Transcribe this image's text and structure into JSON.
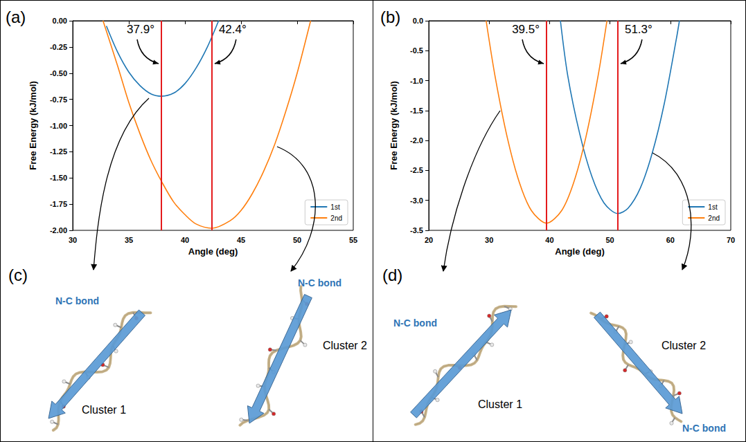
{
  "chart_data": [
    {
      "type": "line",
      "panel": "(a)",
      "xlabel": "Angle (deg)",
      "ylabel": "Free Energy (kJ/mol)",
      "xlim": [
        30,
        55
      ],
      "xticks": [
        30,
        35,
        40,
        45,
        50,
        55
      ],
      "ylim": [
        -2,
        0
      ],
      "yticks": [
        {
          "value": -2,
          "label": "-2.00"
        },
        -1.75,
        {
          "value": -1.5,
          "label": "-1.50"
        },
        -1.25,
        {
          "value": -1,
          "label": "-1.00"
        },
        -0.75,
        {
          "value": -0.5,
          "label": "-0.50"
        },
        -0.25,
        {
          "value": 0,
          "label": "0.00"
        }
      ],
      "grid": false,
      "legend": "lower right",
      "series": [
        {
          "name": "1st",
          "color": "#1f77b4",
          "x": [
            33,
            34,
            35,
            36,
            37,
            37.9,
            39,
            40,
            41,
            42,
            43
          ],
          "values": [
            -0.05,
            -0.3,
            -0.49,
            -0.62,
            -0.7,
            -0.72,
            -0.69,
            -0.6,
            -0.45,
            -0.25,
            0.0
          ]
        },
        {
          "name": "2nd",
          "color": "#ff7f0e",
          "x": [
            32.7,
            34,
            35,
            36,
            37,
            38,
            39,
            40,
            41,
            42.4,
            44,
            45,
            46,
            47,
            48,
            49,
            50,
            51.2
          ],
          "values": [
            0.0,
            -0.43,
            -0.78,
            -1.08,
            -1.34,
            -1.55,
            -1.73,
            -1.85,
            -1.94,
            -1.98,
            -1.91,
            -1.81,
            -1.65,
            -1.44,
            -1.18,
            -0.86,
            -0.5,
            0.0
          ]
        }
      ],
      "vlines": [
        {
          "x": 37.9,
          "label": "37.9°",
          "color": "#e41a1c"
        },
        {
          "x": 42.4,
          "label": "42.4°",
          "color": "#e41a1c"
        }
      ]
    },
    {
      "type": "line",
      "panel": "(b)",
      "xlabel": "Angle (deg)",
      "ylabel": "Free Energy (kJ/mol)",
      "xlim": [
        20,
        70
      ],
      "xticks": [
        20,
        30,
        40,
        50,
        60,
        70
      ],
      "ylim": [
        -3.5,
        0
      ],
      "yticks": [
        -3.5,
        {
          "value": -3,
          "label": "-3.0"
        },
        -2.5,
        {
          "value": -2,
          "label": "-2.0"
        },
        -1.5,
        {
          "value": -1,
          "label": "-1.0"
        },
        -0.5,
        {
          "value": 0,
          "label": "0.0"
        }
      ],
      "grid": false,
      "legend": "lower right",
      "series": [
        {
          "name": "1st",
          "color": "#1f77b4",
          "x": [
            41.8,
            43,
            45,
            47,
            49,
            51.3,
            53,
            55,
            57,
            59,
            61,
            61.5
          ],
          "values": [
            0.0,
            -0.91,
            -1.89,
            -2.6,
            -3.04,
            -3.22,
            -3.13,
            -2.8,
            -2.21,
            -1.38,
            -0.3,
            0.0
          ]
        },
        {
          "name": "2nd",
          "color": "#ff7f0e",
          "x": [
            29.5,
            31,
            33,
            35,
            37,
            39.5,
            42,
            44,
            46,
            48,
            49.5
          ],
          "values": [
            0.0,
            -0.94,
            -1.95,
            -2.7,
            -3.17,
            -3.38,
            -3.17,
            -2.7,
            -1.95,
            -0.94,
            0.0
          ]
        }
      ],
      "vlines": [
        {
          "x": 39.5,
          "label": "39.5°",
          "color": "#e41a1c"
        },
        {
          "x": 51.3,
          "label": "51.3°",
          "color": "#e41a1c"
        }
      ]
    }
  ],
  "diagrams": [
    {
      "panel": "(c)",
      "structures": [
        {
          "label": "Cluster 1",
          "arrow_label": "N-C bond"
        },
        {
          "label": "Cluster 2",
          "arrow_label": "N-C bond"
        }
      ]
    },
    {
      "panel": "(d)",
      "structures": [
        {
          "label": "Cluster 1",
          "arrow_label": "N-C bond"
        },
        {
          "label": "Cluster 2",
          "arrow_label": "N-C bond"
        }
      ]
    }
  ]
}
